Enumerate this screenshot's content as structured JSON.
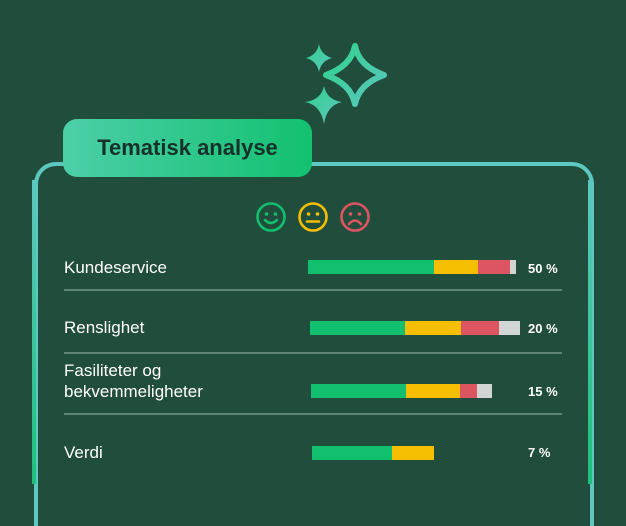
{
  "title": "Tematisk analyse",
  "icons": [
    "sparkles-icon",
    "happy-face-icon",
    "neutral-face-icon",
    "sad-face-icon"
  ],
  "colors": {
    "positive": "#12bf6e",
    "neutral": "#f5be00",
    "negative": "#dc5560",
    "none": "#d3d5d4",
    "background": "#214d3c"
  },
  "legend": [
    "positive",
    "neutral",
    "negative"
  ],
  "rows": [
    {
      "label": "Kundeservice",
      "percent": "50 %",
      "segments": [
        60,
        21,
        15,
        3
      ]
    },
    {
      "label": "Renslighet",
      "percent": "20 %",
      "segments": [
        45,
        27,
        18,
        10
      ]
    },
    {
      "label": "Fasiliteter og bekvemmeligheter",
      "percent": "15 %",
      "segments": [
        45,
        26,
        8,
        7
      ]
    },
    {
      "label": "Verdi",
      "percent": "7 %",
      "segments": [
        38,
        20,
        0,
        0
      ]
    }
  ]
}
